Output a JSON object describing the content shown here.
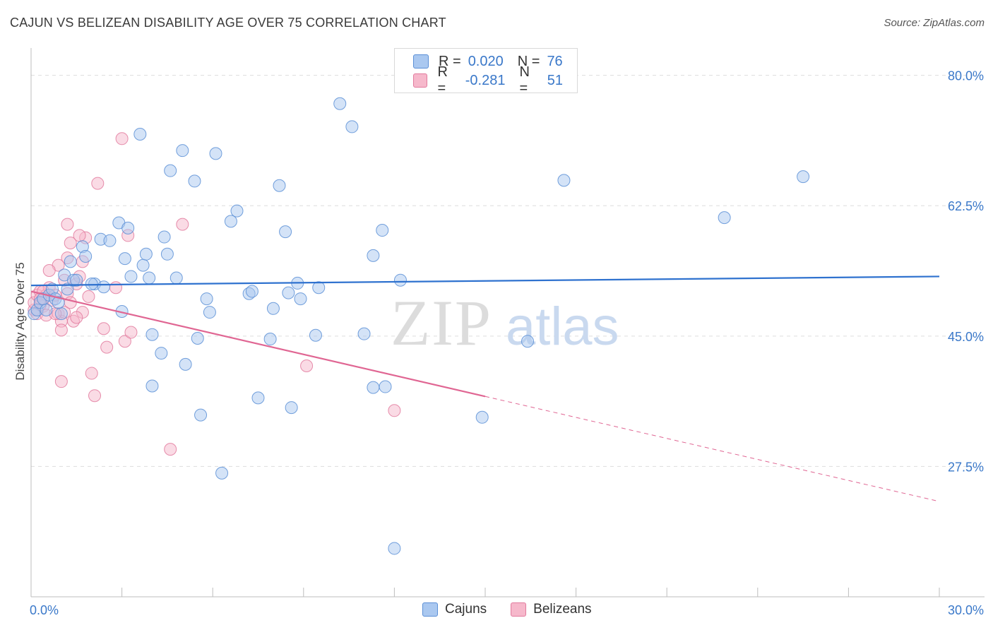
{
  "title": "CAJUN VS BELIZEAN DISABILITY AGE OVER 75 CORRELATION CHART",
  "source": "Source: ZipAtlas.com",
  "watermark": {
    "zip": "ZIP",
    "atlas": "atlas"
  },
  "legend": {
    "rows": [
      {
        "r_label": "R =",
        "r_value": "0.020",
        "n_label": "N =",
        "n_value": "76"
      },
      {
        "r_label": "R =",
        "r_value": "-0.281",
        "n_label": "N =",
        "n_value": "51"
      }
    ]
  },
  "bottom_legend": {
    "items": [
      {
        "label": "Cajuns"
      },
      {
        "label": "Belizeans"
      }
    ]
  },
  "colors": {
    "cajun_fill": "#aac8f0",
    "cajun_stroke": "#5b8fd6",
    "cajun_line": "#2f72cf",
    "belizean_fill": "#f6b8cb",
    "belizean_stroke": "#e27a9d",
    "belizean_line": "#e06693",
    "tick_text": "#3a78c9",
    "grid": "#dddddd"
  },
  "chart_data": {
    "type": "scatter",
    "title": "CAJUN VS BELIZEAN DISABILITY AGE OVER 75 CORRELATION CHART",
    "xlabel": "",
    "ylabel": "Disability Age Over 75",
    "xlim": [
      0,
      30
    ],
    "ylim": [
      10,
      83
    ],
    "x_tick_labels": [
      "0.0%",
      "30.0%"
    ],
    "y_ticks": [
      80,
      62.5,
      45,
      27.5
    ],
    "y_tick_labels": [
      "80.0%",
      "62.5%",
      "45.0%",
      "27.5%"
    ],
    "grid": true,
    "legend_position": "top-center",
    "series": [
      {
        "name": "Cajuns",
        "stats": {
          "R": 0.02,
          "N": 76
        },
        "trend": {
          "x": [
            0,
            30
          ],
          "y": [
            51.8,
            53.0
          ],
          "dashed_from": null
        },
        "points": [
          [
            0.1,
            48.0
          ],
          [
            0.2,
            48.5
          ],
          [
            0.3,
            49.5
          ],
          [
            0.4,
            50.0
          ],
          [
            0.6,
            50.5
          ],
          [
            0.7,
            51.3
          ],
          [
            0.8,
            50.0
          ],
          [
            1.0,
            48.0
          ],
          [
            1.1,
            53.2
          ],
          [
            1.2,
            51.3
          ],
          [
            1.3,
            55.0
          ],
          [
            1.4,
            52.5
          ],
          [
            1.5,
            52.5
          ],
          [
            1.7,
            57.0
          ],
          [
            1.8,
            55.7
          ],
          [
            2.1,
            52.0
          ],
          [
            2.3,
            58.0
          ],
          [
            2.4,
            51.6
          ],
          [
            2.6,
            57.8
          ],
          [
            2.9,
            60.2
          ],
          [
            3.0,
            48.3
          ],
          [
            3.1,
            55.4
          ],
          [
            3.2,
            59.5
          ],
          [
            3.3,
            53.0
          ],
          [
            3.6,
            72.1
          ],
          [
            3.7,
            54.5
          ],
          [
            3.8,
            56.0
          ],
          [
            3.9,
            52.8
          ],
          [
            4.0,
            45.2
          ],
          [
            4.3,
            42.7
          ],
          [
            4.4,
            58.3
          ],
          [
            4.5,
            56.0
          ],
          [
            4.6,
            67.2
          ],
          [
            4.8,
            52.8
          ],
          [
            4.0,
            38.3
          ],
          [
            5.0,
            69.9
          ],
          [
            5.1,
            41.2
          ],
          [
            5.4,
            65.8
          ],
          [
            5.5,
            44.7
          ],
          [
            5.6,
            34.4
          ],
          [
            5.8,
            50.0
          ],
          [
            5.9,
            48.2
          ],
          [
            6.1,
            69.5
          ],
          [
            6.3,
            26.6
          ],
          [
            6.6,
            60.4
          ],
          [
            6.8,
            61.8
          ],
          [
            7.2,
            50.7
          ],
          [
            7.3,
            51.0
          ],
          [
            7.5,
            36.7
          ],
          [
            7.9,
            44.6
          ],
          [
            8.0,
            48.7
          ],
          [
            8.2,
            65.2
          ],
          [
            8.4,
            59.0
          ],
          [
            8.5,
            50.8
          ],
          [
            8.6,
            35.4
          ],
          [
            8.8,
            52.1
          ],
          [
            8.9,
            50.0
          ],
          [
            9.4,
            45.1
          ],
          [
            9.5,
            51.5
          ],
          [
            10.2,
            76.2
          ],
          [
            10.6,
            73.1
          ],
          [
            11.0,
            45.3
          ],
          [
            11.3,
            55.8
          ],
          [
            11.3,
            38.1
          ],
          [
            11.7,
            38.2
          ],
          [
            12.0,
            16.5
          ],
          [
            11.6,
            59.2
          ],
          [
            12.2,
            52.5
          ],
          [
            14.9,
            34.1
          ],
          [
            16.4,
            44.3
          ],
          [
            17.6,
            65.9
          ],
          [
            22.9,
            60.9
          ],
          [
            25.5,
            66.4
          ],
          [
            0.5,
            48.5
          ],
          [
            0.9,
            49.5
          ],
          [
            2.0,
            52.0
          ]
        ]
      },
      {
        "name": "Belizeans",
        "stats": {
          "R": -0.281,
          "N": 51
        },
        "trend": {
          "x": [
            0,
            15,
            30
          ],
          "y": [
            51.0,
            36.9,
            22.8
          ],
          "dashed_from": 15
        },
        "points": [
          [
            0.1,
            48.5
          ],
          [
            0.1,
            49.5
          ],
          [
            0.2,
            50.5
          ],
          [
            0.2,
            48.0
          ],
          [
            0.3,
            51.0
          ],
          [
            0.4,
            49.0
          ],
          [
            0.5,
            47.8
          ],
          [
            0.5,
            50.5
          ],
          [
            0.6,
            51.5
          ],
          [
            0.7,
            49.8
          ],
          [
            0.8,
            50.5
          ],
          [
            0.9,
            48.0
          ],
          [
            1.0,
            47.0
          ],
          [
            1.0,
            45.8
          ],
          [
            1.1,
            48.2
          ],
          [
            1.2,
            50.7
          ],
          [
            1.3,
            49.5
          ],
          [
            1.4,
            47.0
          ],
          [
            1.5,
            52.0
          ],
          [
            1.6,
            53.0
          ],
          [
            1.7,
            55.0
          ],
          [
            1.8,
            58.2
          ],
          [
            1.9,
            50.3
          ],
          [
            2.0,
            40.0
          ],
          [
            2.1,
            37.0
          ],
          [
            2.2,
            65.5
          ],
          [
            2.4,
            46.0
          ],
          [
            2.5,
            43.5
          ],
          [
            2.8,
            51.5
          ],
          [
            3.0,
            71.5
          ],
          [
            3.1,
            44.3
          ],
          [
            3.2,
            58.5
          ],
          [
            3.3,
            45.5
          ],
          [
            1.2,
            60.0
          ],
          [
            1.3,
            57.5
          ],
          [
            1.2,
            55.5
          ],
          [
            1.6,
            58.5
          ],
          [
            0.9,
            54.5
          ],
          [
            1.1,
            52.5
          ],
          [
            1.0,
            38.9
          ],
          [
            4.6,
            29.8
          ],
          [
            5.0,
            60.0
          ],
          [
            0.6,
            53.8
          ],
          [
            0.3,
            49.2
          ],
          [
            0.4,
            51.0
          ],
          [
            1.7,
            48.2
          ],
          [
            9.1,
            41.0
          ],
          [
            12.0,
            35.0
          ],
          [
            0.8,
            48.0
          ],
          [
            1.5,
            47.5
          ],
          [
            0.3,
            50.0
          ]
        ]
      }
    ]
  }
}
